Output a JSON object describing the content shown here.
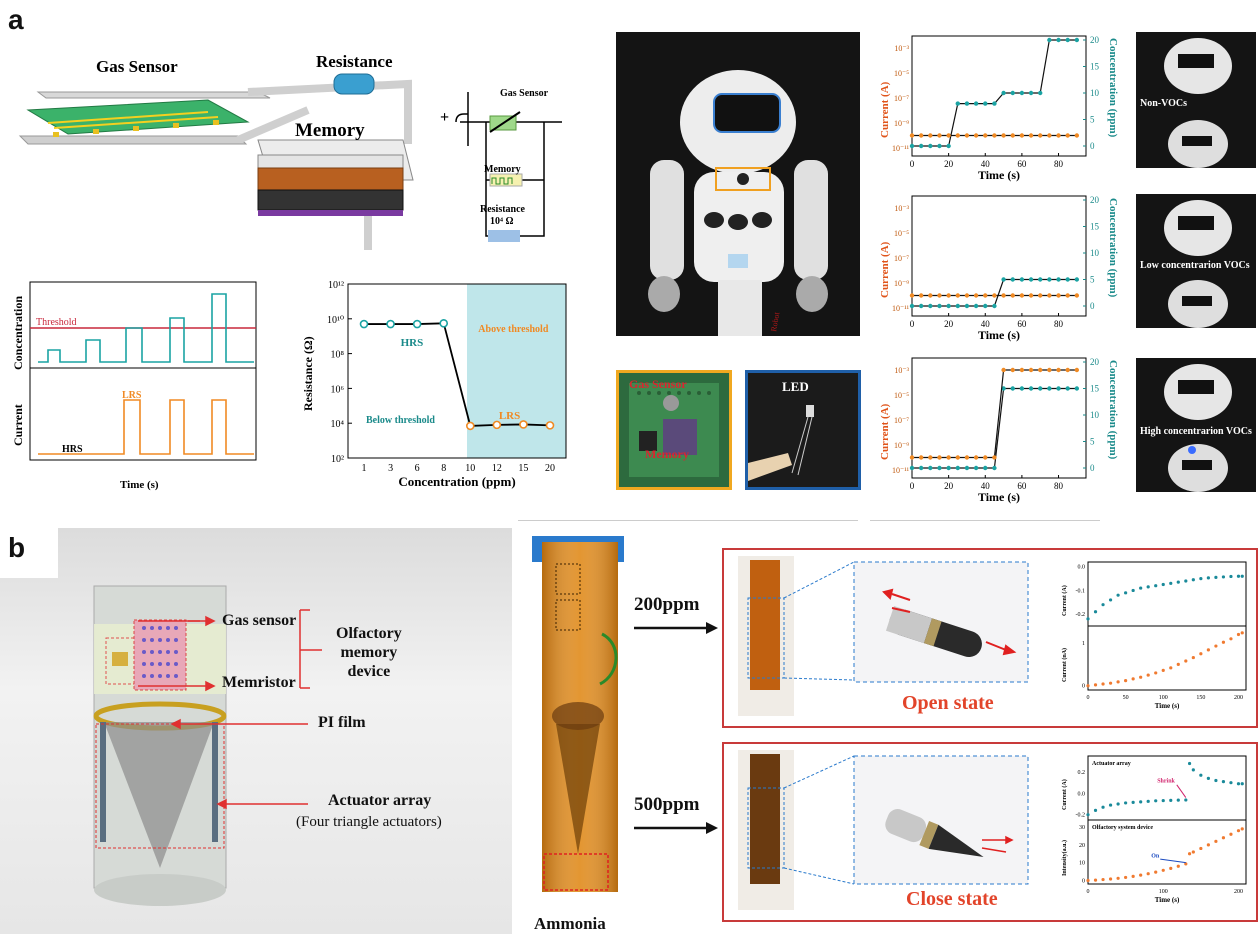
{
  "panel_a": {
    "letter": "a",
    "schematic": {
      "gas_sensor": "Gas Sensor",
      "resistance": "Resistance",
      "memory": "Memory"
    },
    "circuit": {
      "plus": "+",
      "gas_sensor": "Gas Sensor",
      "memory": "Memory",
      "resistance_label": "Resistance",
      "resistance_value": "10⁴ Ω"
    },
    "conc_plot": {
      "ylabel_top": "Concentration",
      "threshold": "Threshold",
      "ylabel_bottom": "Current",
      "lrs": "LRS",
      "hrs": "HRS",
      "xlabel": "Time (s)"
    },
    "robot_captions": [
      "Non-VOCs",
      "Low concentrarion VOCs",
      "High concentrarion VOCs"
    ],
    "small_photos": {
      "gas_sensor": "Gas Sensor",
      "memory": "Memory",
      "led": "LED"
    },
    "robot_text": "Robot"
  },
  "panel_b": {
    "letter": "b",
    "labels": {
      "gas_sensor": "Gas sensor",
      "memristor": "Memristor",
      "device_line1": "Olfactory",
      "device_line2": "memory",
      "device_line3": "device",
      "pi_film": "PI film",
      "actuator": "Actuator array",
      "actuator_sub": "(Four triangle actuators)"
    },
    "ammonia": "Ammonia",
    "conc_200": "200ppm",
    "conc_500": "500ppm",
    "open_state": "Open state",
    "close_state": "Close state",
    "inset1": {
      "ylabel_top": "Current (A)",
      "ylabel_bottom": "Current (nA)",
      "xlabel": "Time (s)"
    },
    "inset2": {
      "ylabel_top": "Current (A)",
      "ylabel_bottom": "Intensity(a.u.)",
      "xlabel": "Time (s)",
      "actuator_array": "Actuator array",
      "shrink": "Shrink",
      "olfactory": "Olfactory system device",
      "on": "On"
    }
  },
  "chart_data": [
    {
      "type": "line",
      "yscale": "log",
      "xlabel": "Concentration (ppm)",
      "ylabel": "Resistance (Ω)",
      "categories": [
        "1",
        "3",
        "6",
        "8",
        "10",
        "12",
        "15",
        "20"
      ],
      "ylim": [
        100,
        1000000000000
      ],
      "yticks": [
        "10²",
        "10⁴",
        "10⁶",
        "10⁸",
        "10¹⁰",
        "10¹²"
      ],
      "series": [
        {
          "values": [
            5000000000.0,
            5000000000.0,
            5000000000.0,
            5500000000.0,
            7000.0,
            8000.0,
            8500.0,
            7500.0
          ]
        }
      ],
      "annotations": [
        "HRS",
        "LRS",
        "Below threshold",
        "Above threshold"
      ]
    },
    {
      "type": "line",
      "xlabel": "Time (s)",
      "ylabel_left": "Current (A)",
      "ylabel_right": "Concentration (ppm)",
      "xticks": [
        "0",
        "20",
        "40",
        "60",
        "80"
      ],
      "left_yticks": [
        "10⁻³",
        "10⁻⁵",
        "10⁻⁷",
        "10⁻⁹",
        "10⁻¹¹"
      ],
      "right_yticks": [
        "0",
        "5",
        "10",
        "15",
        "20"
      ],
      "x": [
        0,
        5,
        10,
        15,
        20,
        25,
        30,
        35,
        40,
        45,
        50,
        55,
        60,
        65,
        70,
        75,
        80,
        85,
        90
      ],
      "series": [
        {
          "axis": "right",
          "values": [
            0,
            0,
            0,
            0,
            0,
            8,
            8,
            8,
            8,
            8,
            10,
            10,
            10,
            10,
            10,
            20,
            20,
            20,
            20
          ]
        },
        {
          "axis": "left",
          "values": [
            1e-10,
            1e-10,
            1e-10,
            1e-10,
            1e-10,
            1e-10,
            1e-10,
            1e-10,
            1e-10,
            1e-10,
            1e-10,
            1e-10,
            1e-10,
            1e-10,
            1e-10,
            1e-10,
            1e-10,
            1e-10,
            1e-10
          ]
        }
      ]
    },
    {
      "type": "line",
      "xlabel": "Time (s)",
      "ylabel_left": "Current (A)",
      "ylabel_right": "Concentration (ppm)",
      "xticks": [
        "0",
        "20",
        "40",
        "60",
        "80"
      ],
      "left_yticks": [
        "10⁻³",
        "10⁻⁵",
        "10⁻⁷",
        "10⁻⁹",
        "10⁻¹¹"
      ],
      "right_yticks": [
        "0",
        "5",
        "10",
        "15",
        "20"
      ],
      "x": [
        0,
        5,
        10,
        15,
        20,
        25,
        30,
        35,
        40,
        45,
        50,
        55,
        60,
        65,
        70,
        75,
        80,
        85,
        90
      ],
      "series": [
        {
          "axis": "right",
          "values": [
            0,
            0,
            0,
            0,
            0,
            0,
            0,
            0,
            0,
            0,
            5,
            5,
            5,
            5,
            5,
            5,
            5,
            5,
            5
          ]
        },
        {
          "axis": "left",
          "values": [
            1e-10,
            1e-10,
            1e-10,
            1e-10,
            1e-10,
            1e-10,
            1e-10,
            1e-10,
            1e-10,
            1e-10,
            1e-10,
            1e-10,
            1e-10,
            1e-10,
            1e-10,
            1e-10,
            1e-10,
            1e-10,
            1e-10
          ]
        }
      ]
    },
    {
      "type": "line",
      "xlabel": "Time (s)",
      "ylabel_left": "Current (A)",
      "ylabel_right": "Concentration (ppm)",
      "xticks": [
        "0",
        "20",
        "40",
        "60",
        "80"
      ],
      "left_yticks": [
        "10⁻³",
        "10⁻⁵",
        "10⁻⁷",
        "10⁻⁹",
        "10⁻¹¹"
      ],
      "right_yticks": [
        "0",
        "5",
        "10",
        "15",
        "20"
      ],
      "x": [
        0,
        5,
        10,
        15,
        20,
        25,
        30,
        35,
        40,
        45,
        50,
        55,
        60,
        65,
        70,
        75,
        80,
        85,
        90
      ],
      "series": [
        {
          "axis": "right",
          "values": [
            0,
            0,
            0,
            0,
            0,
            0,
            0,
            0,
            0,
            0,
            15,
            15,
            15,
            15,
            15,
            15,
            15,
            15,
            15
          ]
        },
        {
          "axis": "left",
          "values": [
            1e-10,
            1e-10,
            1e-10,
            1e-10,
            1e-10,
            1e-10,
            1e-10,
            1e-10,
            1e-10,
            1e-10,
            0.001,
            0.001,
            0.001,
            0.001,
            0.001,
            0.001,
            0.001,
            0.001,
            0.001
          ]
        }
      ]
    },
    {
      "type": "scatter",
      "xlabel": "Time (s)",
      "xticks": [
        "0",
        "50",
        "100",
        "150",
        "200"
      ],
      "x": [
        0,
        10,
        20,
        30,
        40,
        50,
        60,
        70,
        80,
        90,
        100,
        110,
        120,
        130,
        140,
        150,
        160,
        170,
        180,
        190,
        200,
        205
      ],
      "series": [
        {
          "name": "top",
          "ylabel": "Current (A)",
          "yticks": [
            "0.0",
            "-0.1",
            "-0.2"
          ],
          "values": [
            -0.22,
            -0.19,
            -0.16,
            -0.14,
            -0.12,
            -0.11,
            -0.1,
            -0.09,
            -0.085,
            -0.08,
            -0.075,
            -0.07,
            -0.065,
            -0.06,
            -0.055,
            -0.05,
            -0.047,
            -0.045,
            -0.043,
            -0.041,
            -0.04,
            -0.04
          ]
        },
        {
          "name": "bottom",
          "ylabel": "Current (nA)",
          "yticks": [
            "0",
            "1"
          ],
          "values": [
            0,
            0.02,
            0.04,
            0.06,
            0.09,
            0.12,
            0.16,
            0.2,
            0.25,
            0.3,
            0.36,
            0.42,
            0.5,
            0.58,
            0.66,
            0.75,
            0.84,
            0.93,
            1.02,
            1.1,
            1.2,
            1.24
          ]
        }
      ]
    },
    {
      "type": "scatter",
      "xlabel": "Time (s)",
      "xticks": [
        "0",
        "100",
        "200"
      ],
      "x": [
        0,
        10,
        20,
        30,
        40,
        50,
        60,
        70,
        80,
        90,
        100,
        110,
        120,
        130,
        135,
        140,
        150,
        160,
        170,
        180,
        190,
        200,
        205
      ],
      "series": [
        {
          "name": "top",
          "ylabel": "Current (A)",
          "yticks": [
            "0.2",
            "0.0",
            "-0.2"
          ],
          "values": [
            -0.2,
            -0.16,
            -0.13,
            -0.11,
            -0.1,
            -0.09,
            -0.085,
            -0.08,
            -0.075,
            -0.07,
            -0.068,
            -0.066,
            -0.064,
            -0.062,
            0.28,
            0.22,
            0.17,
            0.14,
            0.12,
            0.11,
            0.1,
            0.09,
            0.09
          ]
        },
        {
          "name": "bottom",
          "ylabel": "Intensity(a.u.)",
          "yticks": [
            "0",
            "10",
            "20",
            "30"
          ],
          "values": [
            0,
            0.2,
            0.5,
            0.8,
            1.2,
            1.7,
            2.3,
            3,
            3.8,
            4.7,
            5.7,
            6.8,
            8,
            9.3,
            15,
            16,
            18,
            20,
            22,
            24,
            26,
            28,
            29
          ]
        }
      ]
    }
  ]
}
